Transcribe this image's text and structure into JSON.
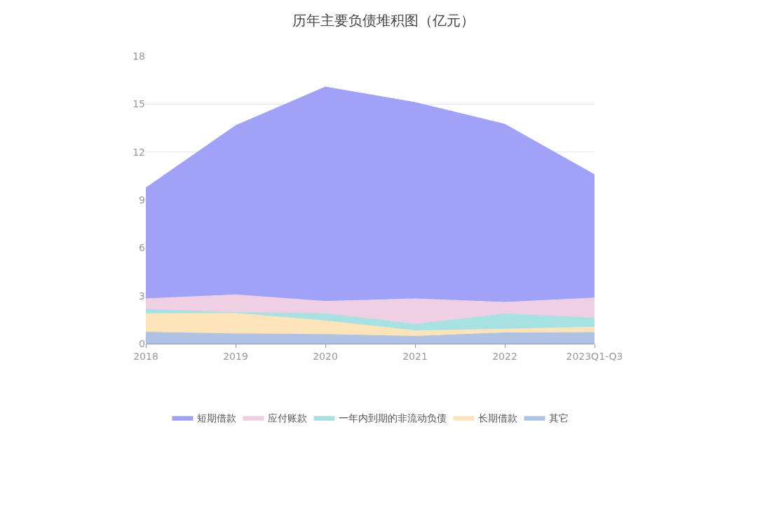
{
  "chart_data": {
    "type": "area",
    "title": "历年主要负债堆积图（亿元）",
    "stacked": true,
    "categories": [
      "2018",
      "2019",
      "2020",
      "2021",
      "2022",
      "2023Q1-Q3"
    ],
    "series": [
      {
        "name": "其它",
        "color": "#aec3e4",
        "values": [
          0.72,
          0.62,
          0.58,
          0.46,
          0.68,
          0.7
        ]
      },
      {
        "name": "长期借款",
        "color": "#fde3b9",
        "values": [
          1.16,
          1.28,
          0.85,
          0.35,
          0.23,
          0.34
        ]
      },
      {
        "name": "一年内到期的非流动负债",
        "color": "#a8e1e2",
        "values": [
          0.27,
          0.05,
          0.45,
          0.41,
          0.95,
          0.57
        ]
      },
      {
        "name": "应付账款",
        "color": "#eecfe3",
        "values": [
          0.66,
          1.11,
          0.77,
          1.59,
          0.73,
          1.25
        ]
      },
      {
        "name": "短期借款",
        "color": "#a0a2f8",
        "values": [
          6.94,
          10.59,
          13.42,
          12.29,
          11.15,
          7.72
        ]
      }
    ],
    "ylim": [
      0,
      18
    ],
    "yticks": [
      0,
      3,
      6,
      9,
      12,
      15,
      18
    ],
    "grid": "y",
    "legend": "bottom"
  }
}
